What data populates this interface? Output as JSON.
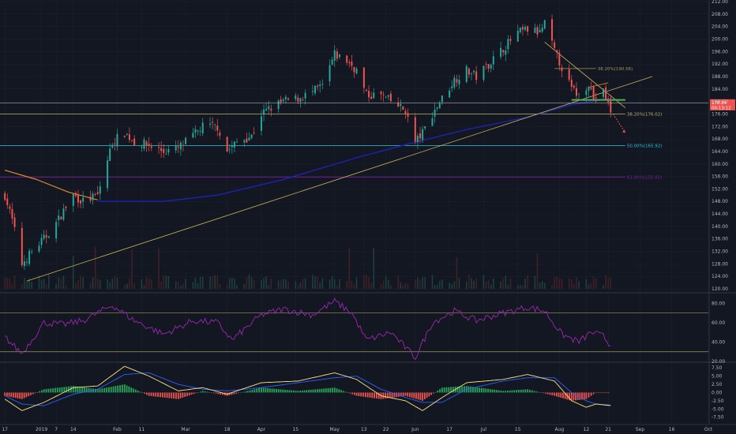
{
  "chart_data": {
    "type": "candlestick",
    "theme": {
      "background": "#131722",
      "up": "#26a69a",
      "down": "#ef5350",
      "grid": "#1e222d",
      "text": "#b2b5be"
    },
    "price_axis": {
      "ylim": [
        119,
        212
      ],
      "ticks": [
        120.0,
        124.0,
        128.0,
        132.0,
        136.0,
        140.0,
        144.0,
        148.0,
        152.0,
        156.0,
        160.0,
        164.0,
        168.0,
        172.0,
        176.0,
        180.0,
        184.0,
        188.0,
        192.0,
        196.0,
        200.0,
        204.0,
        208.0,
        212.0
      ],
      "tick_labels": [
        "120.00",
        "124.00",
        "128.00",
        "132.00",
        "136.00",
        "140.00",
        "144.00",
        "148.00",
        "152.00",
        "156.00",
        "160.00",
        "164.00",
        "168.00",
        "172.00",
        "176.00",
        "180.00",
        "184.00",
        "188.00",
        "192.00",
        "196.00",
        "200.00",
        "204.00",
        "208.00",
        "212.00"
      ]
    },
    "time_axis": {
      "labels": [
        "17",
        "2019",
        "7",
        "14",
        "Feb",
        "11",
        "Mar",
        "18",
        "Apr",
        "15",
        "May",
        "13",
        "22",
        "Jun",
        "17",
        "Jul",
        "15",
        "Aug",
        "12",
        "21",
        "Sep",
        "16",
        "Oct"
      ]
    },
    "price_series": [
      {
        "d": "2018-12-17",
        "c": 150
      },
      {
        "d": "2018-12-20",
        "c": 142
      },
      {
        "d": "2018-12-24",
        "c": 128
      },
      {
        "d": "2018-12-27",
        "c": 131
      },
      {
        "d": "2019-01-02",
        "c": 136
      },
      {
        "d": "2019-01-07",
        "c": 141
      },
      {
        "d": "2019-01-10",
        "c": 145
      },
      {
        "d": "2019-01-14",
        "c": 150
      },
      {
        "d": "2019-01-18",
        "c": 148
      },
      {
        "d": "2019-01-24",
        "c": 150
      },
      {
        "d": "2019-01-30",
        "c": 167
      },
      {
        "d": "2019-02-04",
        "c": 170
      },
      {
        "d": "2019-02-08",
        "c": 167
      },
      {
        "d": "2019-02-14",
        "c": 166
      },
      {
        "d": "2019-02-20",
        "c": 164
      },
      {
        "d": "2019-02-26",
        "c": 165
      },
      {
        "d": "2019-03-04",
        "c": 169
      },
      {
        "d": "2019-03-08",
        "c": 172
      },
      {
        "d": "2019-03-14",
        "c": 172
      },
      {
        "d": "2019-03-18",
        "c": 164
      },
      {
        "d": "2019-03-22",
        "c": 167
      },
      {
        "d": "2019-03-28",
        "c": 169
      },
      {
        "d": "2019-04-01",
        "c": 176
      },
      {
        "d": "2019-04-05",
        "c": 178
      },
      {
        "d": "2019-04-10",
        "c": 180
      },
      {
        "d": "2019-04-16",
        "c": 181
      },
      {
        "d": "2019-04-22",
        "c": 183
      },
      {
        "d": "2019-04-26",
        "c": 185
      },
      {
        "d": "2019-05-01",
        "c": 195
      },
      {
        "d": "2019-05-06",
        "c": 193
      },
      {
        "d": "2019-05-10",
        "c": 190
      },
      {
        "d": "2019-05-14",
        "c": 182
      },
      {
        "d": "2019-05-20",
        "c": 182
      },
      {
        "d": "2019-05-24",
        "c": 180
      },
      {
        "d": "2019-05-30",
        "c": 177
      },
      {
        "d": "2019-06-03",
        "c": 167
      },
      {
        "d": "2019-06-06",
        "c": 170
      },
      {
        "d": "2019-06-10",
        "c": 176
      },
      {
        "d": "2019-06-14",
        "c": 181
      },
      {
        "d": "2019-06-19",
        "c": 187
      },
      {
        "d": "2019-06-24",
        "c": 190
      },
      {
        "d": "2019-06-28",
        "c": 188
      },
      {
        "d": "2019-07-03",
        "c": 192
      },
      {
        "d": "2019-07-09",
        "c": 197
      },
      {
        "d": "2019-07-15",
        "c": 202
      },
      {
        "d": "2019-07-19",
        "c": 203
      },
      {
        "d": "2019-07-24",
        "c": 202
      },
      {
        "d": "2019-07-26",
        "c": 205
      },
      {
        "d": "2019-07-30",
        "c": 196
      },
      {
        "d": "2019-08-02",
        "c": 191
      },
      {
        "d": "2019-08-06",
        "c": 184
      },
      {
        "d": "2019-08-09",
        "c": 182
      },
      {
        "d": "2019-08-13",
        "c": 186
      },
      {
        "d": "2019-08-15",
        "c": 181
      },
      {
        "d": "2019-08-19",
        "c": 183
      },
      {
        "d": "2019-08-22",
        "c": 177
      }
    ],
    "ma_long": {
      "color": "#1e22aa",
      "points": [
        {
          "d": "2019-01-24",
          "v": 148
        },
        {
          "d": "2019-02-20",
          "v": 148
        },
        {
          "d": "2019-03-14",
          "v": 150
        },
        {
          "d": "2019-04-10",
          "v": 155
        },
        {
          "d": "2019-05-10",
          "v": 162
        },
        {
          "d": "2019-06-03",
          "v": 167
        },
        {
          "d": "2019-06-24",
          "v": 171
        },
        {
          "d": "2019-07-19",
          "v": 175
        },
        {
          "d": "2019-08-06",
          "v": 179
        },
        {
          "d": "2019-08-22",
          "v": 181
        }
      ]
    },
    "ma_long_orange": {
      "color": "#e08a2a",
      "points": [
        {
          "d": "2018-12-17",
          "v": 158
        },
        {
          "d": "2018-12-30",
          "v": 155
        },
        {
          "d": "2019-01-12",
          "v": 151
        },
        {
          "d": "2019-01-24",
          "v": 148.5
        }
      ]
    },
    "fib_levels": [
      {
        "label": "38.20%(190.56)",
        "value": 190.56,
        "color": "#9e9a55",
        "from": "2019-07-30",
        "to": "2019-08-16"
      },
      {
        "label": "38.20%(176.02)",
        "value": 176.02,
        "color": "#b8b46a",
        "from": "2018-12-15",
        "to": "2019-08-28"
      },
      {
        "label": "50.00%(165.92)",
        "value": 165.92,
        "color": "#26c6da",
        "from": "2018-12-15",
        "to": "2019-08-28"
      },
      {
        "label": "61.80%(155.82)",
        "value": 155.82,
        "color": "#7b1fa2",
        "from": "2018-12-15",
        "to": "2019-08-28"
      }
    ],
    "trendlines": [
      {
        "color": "#c9b458",
        "from": {
          "d": "2018-12-26",
          "v": 122.5
        },
        "to": {
          "d": "2019-09-08",
          "v": 188
        }
      },
      {
        "color": "#c9b458",
        "from": {
          "d": "2019-07-26",
          "v": 199
        },
        "to": {
          "d": "2019-08-28",
          "v": 178
        }
      },
      {
        "color": "#e08a2a",
        "from": {
          "d": "2019-08-13",
          "v": 184.5
        },
        "to": {
          "d": "2019-08-21",
          "v": 186
        }
      }
    ],
    "support_line": {
      "color": "#4caf50",
      "value": 180.5,
      "from": "2019-08-06",
      "to": "2019-08-28"
    },
    "horizontal_line": {
      "color": "#ffffff",
      "value": 179.5
    },
    "current_price": {
      "label": "178.94",
      "countdown": "00:13:12",
      "value": 178.94,
      "color": "#ef5350"
    },
    "projection_arrow": {
      "from": {
        "d": "2019-08-23",
        "v": 176
      },
      "to": {
        "d": "2019-08-28",
        "v": 170
      },
      "color": "#ef5350"
    },
    "rsi": {
      "color": "#9c27b0",
      "ylim": [
        20,
        90
      ],
      "ticks": [
        20.0,
        40.0,
        60.0,
        80.0
      ],
      "tick_labels": [
        "20.00",
        "40.00",
        "60.00",
        "80.00"
      ],
      "bands": [
        70,
        30
      ],
      "points": [
        {
          "d": "2018-12-17",
          "v": 45
        },
        {
          "d": "2018-12-24",
          "v": 28
        },
        {
          "d": "2019-01-02",
          "v": 60
        },
        {
          "d": "2019-01-10",
          "v": 58
        },
        {
          "d": "2019-01-18",
          "v": 62
        },
        {
          "d": "2019-01-30",
          "v": 78
        },
        {
          "d": "2019-02-08",
          "v": 62
        },
        {
          "d": "2019-02-20",
          "v": 48
        },
        {
          "d": "2019-03-04",
          "v": 62
        },
        {
          "d": "2019-03-14",
          "v": 60
        },
        {
          "d": "2019-03-20",
          "v": 42
        },
        {
          "d": "2019-04-01",
          "v": 68
        },
        {
          "d": "2019-04-10",
          "v": 74
        },
        {
          "d": "2019-04-22",
          "v": 68
        },
        {
          "d": "2019-05-01",
          "v": 82
        },
        {
          "d": "2019-05-08",
          "v": 70
        },
        {
          "d": "2019-05-14",
          "v": 42
        },
        {
          "d": "2019-05-24",
          "v": 50
        },
        {
          "d": "2019-06-03",
          "v": 24
        },
        {
          "d": "2019-06-10",
          "v": 60
        },
        {
          "d": "2019-06-19",
          "v": 72
        },
        {
          "d": "2019-06-28",
          "v": 62
        },
        {
          "d": "2019-07-09",
          "v": 70
        },
        {
          "d": "2019-07-19",
          "v": 76
        },
        {
          "d": "2019-07-26",
          "v": 72
        },
        {
          "d": "2019-08-02",
          "v": 48
        },
        {
          "d": "2019-08-09",
          "v": 40
        },
        {
          "d": "2019-08-14",
          "v": 50
        },
        {
          "d": "2019-08-19",
          "v": 46
        },
        {
          "d": "2019-08-22",
          "v": 36
        }
      ]
    },
    "macd": {
      "ylim": [
        -9.5,
        9.0
      ],
      "ticks": [
        -7.5,
        -5.0,
        -2.5,
        0.0,
        2.5,
        5.0,
        7.5
      ],
      "tick_labels": [
        "-7.50",
        "-5.00",
        "-2.50",
        "0.00",
        "2.50",
        "5.00",
        "7.50"
      ],
      "macd_color": "#ffe082",
      "signal_color": "#2962ff",
      "hist_up": "#26a65b",
      "hist_down": "#ef5350",
      "points": [
        {
          "d": "2018-12-17",
          "m": -2.0,
          "s": -1.0
        },
        {
          "d": "2018-12-24",
          "m": -5.5,
          "s": -3.5
        },
        {
          "d": "2019-01-02",
          "m": -3.0,
          "s": -4.0
        },
        {
          "d": "2019-01-14",
          "m": 1.5,
          "s": -0.5
        },
        {
          "d": "2019-01-24",
          "m": 2.0,
          "s": 1.0
        },
        {
          "d": "2019-02-04",
          "m": 8.0,
          "s": 5.5
        },
        {
          "d": "2019-02-14",
          "m": 5.0,
          "s": 6.0
        },
        {
          "d": "2019-02-26",
          "m": 0.5,
          "s": 2.5
        },
        {
          "d": "2019-03-08",
          "m": 1.5,
          "s": 1.0
        },
        {
          "d": "2019-03-18",
          "m": -0.5,
          "s": 0.5
        },
        {
          "d": "2019-04-01",
          "m": 3.0,
          "s": 1.5
        },
        {
          "d": "2019-04-16",
          "m": 3.5,
          "s": 3.0
        },
        {
          "d": "2019-05-01",
          "m": 6.0,
          "s": 4.5
        },
        {
          "d": "2019-05-10",
          "m": 4.0,
          "s": 5.0
        },
        {
          "d": "2019-05-20",
          "m": -1.0,
          "s": 1.0
        },
        {
          "d": "2019-05-30",
          "m": -2.5,
          "s": -1.5
        },
        {
          "d": "2019-06-06",
          "m": -5.5,
          "s": -3.0
        },
        {
          "d": "2019-06-14",
          "m": -1.5,
          "s": -3.0
        },
        {
          "d": "2019-06-24",
          "m": 3.0,
          "s": 1.0
        },
        {
          "d": "2019-07-09",
          "m": 4.0,
          "s": 3.5
        },
        {
          "d": "2019-07-19",
          "m": 5.5,
          "s": 4.5
        },
        {
          "d": "2019-07-30",
          "m": 3.5,
          "s": 4.5
        },
        {
          "d": "2019-08-06",
          "m": -2.5,
          "s": 0.0
        },
        {
          "d": "2019-08-12",
          "m": -4.5,
          "s": -2.5
        },
        {
          "d": "2019-08-16",
          "m": -3.5,
          "s": -3.5
        },
        {
          "d": "2019-08-22",
          "m": -4.0,
          "s": -3.8
        }
      ]
    }
  }
}
